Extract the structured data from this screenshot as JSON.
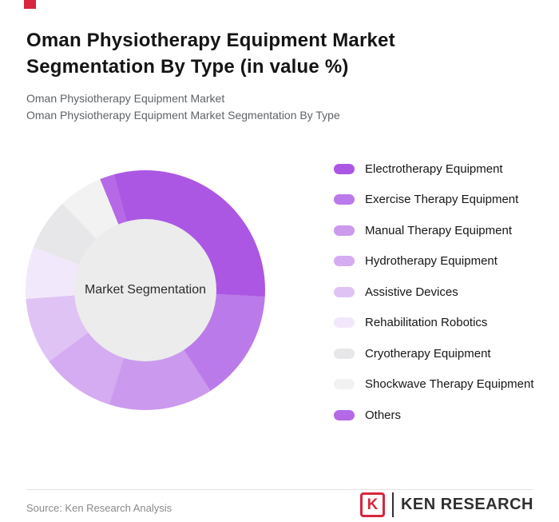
{
  "accent": {
    "red": "#d7263d"
  },
  "header": {
    "title": "Oman Physiotherapy Equipment Market Segmentation By Type (in value %)",
    "subtitle_line1": "Oman Physiotherapy Equipment Market",
    "subtitle_line2": "Oman Physiotherapy Equipment Market Segmentation By Type"
  },
  "chart_data": {
    "type": "pie",
    "donut": true,
    "title": "Oman Physiotherapy Equipment Market Segmentation By Type (in value %)",
    "center_label": "Market Segmentation",
    "legend_position": "right",
    "start_angle_deg": -15,
    "note": "No numeric data labels shown; values estimated from arc angles, in value %",
    "categories": [
      "Electrotherapy Equipment",
      "Exercise Therapy Equipment",
      "Manual Therapy Equipment",
      "Hydrotherapy Equipment",
      "Assistive Devices",
      "Rehabilitation Robotics",
      "Cryotherapy Equipment",
      "Shockwave Therapy Equipment",
      "Others"
    ],
    "values": [
      30,
      15,
      14,
      10,
      9,
      7,
      7,
      6,
      2
    ],
    "colors": [
      "#ab57e3",
      "#bb7ae9",
      "#cb99ee",
      "#d5abf1",
      "#e0c3f5",
      "#f2e8fb",
      "#e7e7e9",
      "#f2f2f2",
      "#b569e6"
    ],
    "hole_color": "#ececec"
  },
  "legend": {
    "items": [
      {
        "label": "Electrotherapy Equipment",
        "color": "#ab57e3"
      },
      {
        "label": "Exercise Therapy Equipment",
        "color": "#bb7ae9"
      },
      {
        "label": "Manual Therapy Equipment",
        "color": "#cb99ee"
      },
      {
        "label": "Hydrotherapy Equipment",
        "color": "#d5abf1"
      },
      {
        "label": "Assistive Devices",
        "color": "#e0c3f5"
      },
      {
        "label": "Rehabilitation Robotics",
        "color": "#f2e8fb"
      },
      {
        "label": "Cryotherapy Equipment",
        "color": "#e7e7e9"
      },
      {
        "label": "Shockwave Therapy Equipment",
        "color": "#f2f2f2"
      },
      {
        "label": "Others",
        "color": "#b569e6"
      }
    ]
  },
  "footer": {
    "source": "Source: Ken Research Analysis",
    "logo_letter": "K",
    "logo_text": "KEN RESEARCH"
  }
}
